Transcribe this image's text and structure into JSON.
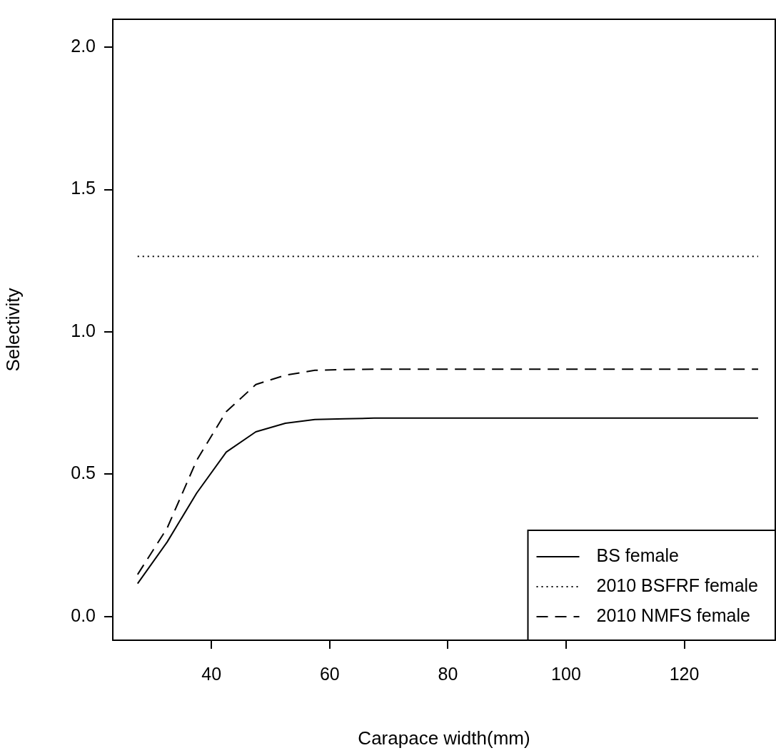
{
  "chart_data": {
    "type": "line",
    "xlabel": "Carapace width(mm)",
    "ylabel": "Selectivity",
    "x": [
      27.5,
      32.5,
      37.5,
      42.5,
      47.5,
      52.5,
      57.5,
      62.5,
      67.5,
      72.5,
      77.5,
      82.5,
      87.5,
      92.5,
      97.5,
      102.5,
      107.5,
      112.5,
      117.5,
      122.5,
      127.5,
      132.5
    ],
    "series": [
      {
        "name": "BS female",
        "color": "#000000",
        "line_style": "solid",
        "values": [
          0.116,
          0.262,
          0.434,
          0.578,
          0.649,
          0.679,
          0.692,
          0.695,
          0.697,
          0.697,
          0.697,
          0.697,
          0.697,
          0.697,
          0.697,
          0.697,
          0.697,
          0.697,
          0.697,
          0.697,
          0.697,
          0.697
        ]
      },
      {
        "name": "2010 BSFRF female",
        "color": "#000000",
        "line_style": "dotted",
        "values": [
          1.265,
          1.265,
          1.265,
          1.265,
          1.265,
          1.265,
          1.265,
          1.265,
          1.265,
          1.265,
          1.265,
          1.265,
          1.265,
          1.265,
          1.265,
          1.265,
          1.265,
          1.265,
          1.265,
          1.265,
          1.265,
          1.265
        ]
      },
      {
        "name": "2010 NMFS female",
        "color": "#000000",
        "line_style": "dashed",
        "values": [
          0.148,
          0.311,
          0.549,
          0.72,
          0.815,
          0.848,
          0.865,
          0.868,
          0.869,
          0.869,
          0.869,
          0.869,
          0.869,
          0.869,
          0.869,
          0.869,
          0.869,
          0.869,
          0.869,
          0.869,
          0.869,
          0.869
        ]
      }
    ],
    "xlim": [
      23.3,
      135.4
    ],
    "xticks": [
      40,
      60,
      80,
      100,
      120
    ],
    "ylim": [
      -0.083,
      2.098
    ],
    "yticks": [
      {
        "value": 0,
        "label": "0.0"
      },
      0.5,
      {
        "value": 1,
        "label": "1.0"
      },
      1.5,
      {
        "value": 2,
        "label": "2.0"
      }
    ],
    "grid": false,
    "legend": "bottom right",
    "marker": "none"
  }
}
